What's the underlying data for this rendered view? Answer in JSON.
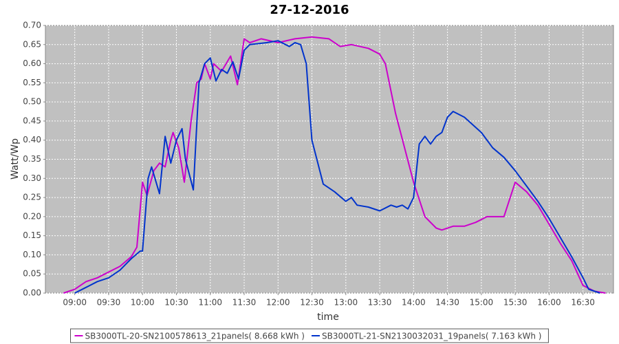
{
  "chart_data": {
    "type": "line",
    "title": "27-12-2016",
    "x_label": "time",
    "y_label": "Watt/Wp",
    "xlim": [
      "08:34",
      "16:57"
    ],
    "xticks": [
      "09:00",
      "09:30",
      "10:00",
      "10:30",
      "11:00",
      "11:30",
      "12:00",
      "12:30",
      "13:00",
      "13:30",
      "14:00",
      "14:30",
      "15:00",
      "15:30",
      "16:00",
      "16:30"
    ],
    "ylim": [
      0,
      0.7
    ],
    "yticks": [
      {
        "value": 0,
        "label": "0.00"
      },
      {
        "value": 0.05,
        "label": "0.05"
      },
      {
        "value": 0.1,
        "label": "0.10"
      },
      {
        "value": 0.15,
        "label": "0.15"
      },
      {
        "value": 0.2,
        "label": "0.20"
      },
      {
        "value": 0.25,
        "label": "0.25"
      },
      {
        "value": 0.3,
        "label": "0.30"
      },
      {
        "value": 0.35,
        "label": "0.35"
      },
      {
        "value": 0.4,
        "label": "0.40"
      },
      {
        "value": 0.45,
        "label": "0.45"
      },
      {
        "value": 0.5,
        "label": "0.50"
      },
      {
        "value": 0.55,
        "label": "0.55"
      },
      {
        "value": 0.6,
        "label": "0.60"
      },
      {
        "value": 0.65,
        "label": "0.65"
      },
      {
        "value": 0.7,
        "label": "0.70"
      }
    ],
    "grid": true,
    "legend": "bottom",
    "series": [
      {
        "name": "SB3000TL-20-SN2100578613_21panels( 8.668 kWh )",
        "color": "#cc00cc",
        "x": [
          "08:50",
          "09:00",
          "09:10",
          "09:20",
          "09:30",
          "09:40",
          "09:50",
          "09:55",
          "10:00",
          "10:04",
          "10:10",
          "10:15",
          "10:20",
          "10:25",
          "10:27",
          "10:32",
          "10:37",
          "10:43",
          "10:48",
          "10:52",
          "10:55",
          "11:00",
          "11:03",
          "11:10",
          "11:18",
          "11:24",
          "11:30",
          "11:35",
          "11:45",
          "12:00",
          "12:15",
          "12:30",
          "12:45",
          "12:55",
          "13:05",
          "13:20",
          "13:30",
          "13:35",
          "13:44",
          "13:52",
          "14:00",
          "14:10",
          "14:20",
          "14:25",
          "14:35",
          "14:45",
          "14:55",
          "15:05",
          "15:20",
          "15:30",
          "15:40",
          "15:50",
          "16:00",
          "16:10",
          "16:20",
          "16:30",
          "16:40",
          "16:50"
        ],
        "values": [
          0,
          0.01,
          0.03,
          0.04,
          0.055,
          0.07,
          0.095,
          0.12,
          0.29,
          0.255,
          0.32,
          0.34,
          0.33,
          0.4,
          0.42,
          0.38,
          0.29,
          0.45,
          0.55,
          0.56,
          0.6,
          0.56,
          0.6,
          0.58,
          0.62,
          0.545,
          0.665,
          0.655,
          0.665,
          0.655,
          0.665,
          0.67,
          0.665,
          0.645,
          0.65,
          0.64,
          0.625,
          0.6,
          0.47,
          0.38,
          0.29,
          0.2,
          0.17,
          0.165,
          0.175,
          0.175,
          0.185,
          0.2,
          0.2,
          0.29,
          0.265,
          0.23,
          0.18,
          0.13,
          0.085,
          0.02,
          0.005,
          0
        ]
      },
      {
        "name": "SB3000TL-21-SN2130032031_19panels( 7.163 kWh )",
        "color": "#0033cc",
        "x": [
          "09:00",
          "09:10",
          "09:20",
          "09:30",
          "09:40",
          "09:50",
          "09:58",
          "10:00",
          "10:05",
          "10:08",
          "10:15",
          "10:20",
          "10:25",
          "10:30",
          "10:35",
          "10:38",
          "10:45",
          "10:50",
          "10:55",
          "11:00",
          "11:05",
          "11:10",
          "11:15",
          "11:20",
          "11:25",
          "11:30",
          "11:35",
          "11:50",
          "12:00",
          "12:10",
          "12:15",
          "12:20",
          "12:25",
          "12:30",
          "12:40",
          "12:50",
          "13:00",
          "13:05",
          "13:10",
          "13:20",
          "13:30",
          "13:40",
          "13:45",
          "13:50",
          "13:55",
          "14:00",
          "14:05",
          "14:10",
          "14:15",
          "14:20",
          "14:25",
          "14:30",
          "14:35",
          "14:45",
          "15:00",
          "15:10",
          "15:20",
          "15:30",
          "15:40",
          "15:50",
          "16:00",
          "16:10",
          "16:20",
          "16:30",
          "16:35",
          "16:40",
          "16:45"
        ],
        "values": [
          0,
          0.015,
          0.03,
          0.04,
          0.06,
          0.09,
          0.11,
          0.11,
          0.3,
          0.33,
          0.26,
          0.41,
          0.34,
          0.4,
          0.43,
          0.35,
          0.27,
          0.55,
          0.6,
          0.615,
          0.555,
          0.585,
          0.575,
          0.605,
          0.56,
          0.635,
          0.65,
          0.655,
          0.66,
          0.645,
          0.655,
          0.65,
          0.6,
          0.4,
          0.285,
          0.265,
          0.24,
          0.25,
          0.23,
          0.225,
          0.215,
          0.23,
          0.225,
          0.23,
          0.22,
          0.25,
          0.39,
          0.41,
          0.39,
          0.41,
          0.42,
          0.46,
          0.475,
          0.46,
          0.42,
          0.38,
          0.355,
          0.32,
          0.28,
          0.24,
          0.195,
          0.145,
          0.095,
          0.04,
          0.01,
          0.005,
          0
        ]
      }
    ]
  }
}
